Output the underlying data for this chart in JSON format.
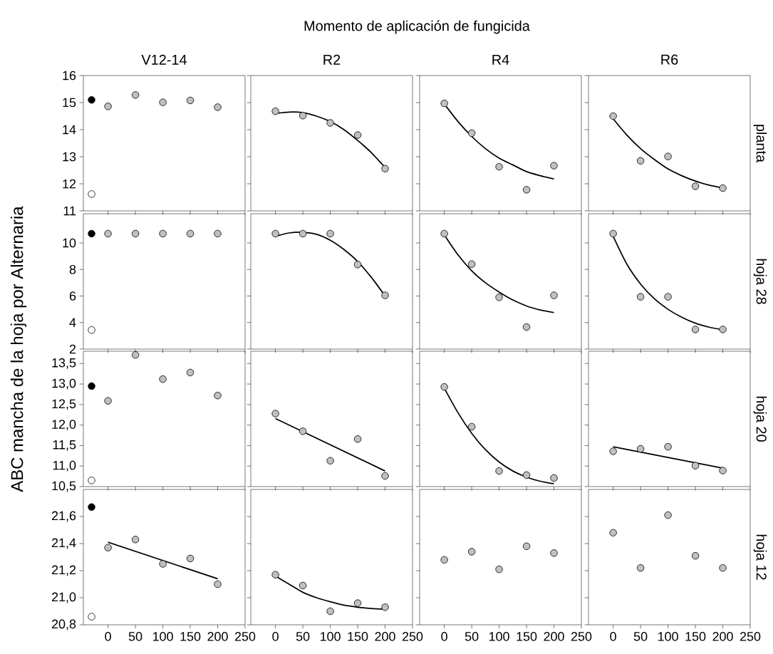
{
  "chart_data": [
    {
      "type": "scatter",
      "title": "V12-14",
      "ylabel": "ABC mancha de la hoja por Alternaria",
      "annotations": [
        "Momento de aplicación de fungicida"
      ],
      "xlim": [
        -45,
        250
      ],
      "ylim": [
        11,
        16
      ],
      "xticks": [
        0,
        50,
        100,
        150,
        200,
        250
      ],
      "yticks": [
        11,
        12,
        13,
        14,
        15,
        16
      ],
      "tick_labels": "y",
      "series": [
        {
          "color": "#c0c0c0",
          "x": [
            0,
            50,
            100,
            150,
            200
          ],
          "values": [
            14.86,
            15.28,
            15.01,
            15.08,
            14.83
          ]
        },
        {
          "color": "#000000",
          "x": [
            -30
          ],
          "values": [
            15.1
          ]
        },
        {
          "color": "#ffffff",
          "x": [
            -30
          ],
          "values": [
            11.62
          ]
        }
      ]
    },
    {
      "type": "scatter",
      "title": "R2",
      "xlim": [
        -45,
        250
      ],
      "ylim": [
        11,
        16
      ],
      "xticks": [
        0,
        50,
        100,
        150,
        200,
        250
      ],
      "yticks": [
        11,
        12,
        13,
        14,
        15,
        16
      ],
      "tick_labels": false,
      "series": [
        {
          "color": "#c0c0c0",
          "x": [
            0,
            50,
            100,
            150,
            200
          ],
          "values": [
            14.68,
            14.52,
            14.25,
            13.8,
            12.56
          ]
        },
        {
          "type": "line",
          "color": "#000000",
          "x": [
            0,
            25,
            50,
            75,
            100,
            125,
            150,
            175,
            200
          ],
          "values": [
            14.6,
            14.65,
            14.63,
            14.5,
            14.3,
            14.0,
            13.6,
            13.15,
            12.6
          ]
        }
      ]
    },
    {
      "type": "scatter",
      "title": "R4",
      "xlim": [
        -45,
        250
      ],
      "ylim": [
        11,
        16
      ],
      "xticks": [
        0,
        50,
        100,
        150,
        200,
        250
      ],
      "yticks": [
        11,
        12,
        13,
        14,
        15,
        16
      ],
      "tick_labels": false,
      "series": [
        {
          "color": "#c0c0c0",
          "x": [
            0,
            50,
            100,
            150,
            200
          ],
          "values": [
            14.97,
            13.87,
            12.63,
            11.78,
            12.67
          ]
        },
        {
          "type": "line",
          "color": "#000000",
          "x": [
            0,
            25,
            50,
            75,
            100,
            125,
            150,
            175,
            200
          ],
          "values": [
            14.95,
            14.3,
            13.75,
            13.3,
            12.95,
            12.7,
            12.45,
            12.3,
            12.18
          ]
        }
      ]
    },
    {
      "type": "scatter",
      "title": "R6",
      "y2label": "planta",
      "xlim": [
        -45,
        250
      ],
      "ylim": [
        11,
        16
      ],
      "xticks": [
        0,
        50,
        100,
        150,
        200,
        250
      ],
      "yticks": [
        11,
        12,
        13,
        14,
        15,
        16
      ],
      "tick_labels": false,
      "series": [
        {
          "color": "#c0c0c0",
          "x": [
            0,
            50,
            100,
            150,
            200
          ],
          "values": [
            14.5,
            12.85,
            13.01,
            11.91,
            11.84
          ]
        },
        {
          "type": "line",
          "color": "#000000",
          "x": [
            0,
            25,
            50,
            75,
            100,
            125,
            150,
            175,
            200
          ],
          "values": [
            14.4,
            13.8,
            13.3,
            12.9,
            12.55,
            12.3,
            12.1,
            11.95,
            11.85
          ]
        }
      ]
    },
    {
      "type": "scatter",
      "xlim": [
        -45,
        250
      ],
      "ylim": [
        2,
        12.2
      ],
      "xticks": [
        0,
        50,
        100,
        150,
        200,
        250
      ],
      "yticks": [
        2,
        4,
        6,
        8,
        10
      ],
      "tick_labels": "y",
      "series": [
        {
          "color": "#c0c0c0",
          "x": [
            0,
            50,
            100,
            150,
            200
          ],
          "values": [
            10.7,
            10.7,
            10.7,
            10.7,
            10.7
          ]
        },
        {
          "color": "#000000",
          "x": [
            -30
          ],
          "values": [
            10.7
          ]
        },
        {
          "color": "#ffffff",
          "x": [
            -30
          ],
          "values": [
            3.44
          ]
        }
      ]
    },
    {
      "type": "scatter",
      "xlim": [
        -45,
        250
      ],
      "ylim": [
        2,
        12.2
      ],
      "xticks": [
        0,
        50,
        100,
        150,
        200,
        250
      ],
      "yticks": [
        2,
        4,
        6,
        8,
        10
      ],
      "tick_labels": false,
      "series": [
        {
          "color": "#c0c0c0",
          "x": [
            0,
            50,
            100,
            150,
            200
          ],
          "values": [
            10.7,
            10.7,
            10.7,
            8.37,
            6.05
          ]
        },
        {
          "type": "line",
          "color": "#000000",
          "x": [
            0,
            25,
            50,
            75,
            100,
            125,
            150,
            175,
            200
          ],
          "values": [
            10.5,
            10.75,
            10.8,
            10.65,
            10.2,
            9.5,
            8.6,
            7.4,
            6.0
          ]
        }
      ]
    },
    {
      "type": "scatter",
      "xlim": [
        -45,
        250
      ],
      "ylim": [
        2,
        12.2
      ],
      "xticks": [
        0,
        50,
        100,
        150,
        200,
        250
      ],
      "yticks": [
        2,
        4,
        6,
        8,
        10
      ],
      "tick_labels": false,
      "series": [
        {
          "color": "#c0c0c0",
          "x": [
            0,
            50,
            100,
            150,
            200
          ],
          "values": [
            10.7,
            8.4,
            5.9,
            3.66,
            6.05
          ]
        },
        {
          "type": "line",
          "color": "#000000",
          "x": [
            0,
            25,
            50,
            75,
            100,
            125,
            150,
            175,
            200
          ],
          "values": [
            10.6,
            9.1,
            7.9,
            7.0,
            6.3,
            5.7,
            5.25,
            4.95,
            4.75
          ]
        }
      ]
    },
    {
      "type": "scatter",
      "y2label": "hoja 28",
      "xlim": [
        -45,
        250
      ],
      "ylim": [
        2,
        12.2
      ],
      "xticks": [
        0,
        50,
        100,
        150,
        200,
        250
      ],
      "yticks": [
        2,
        4,
        6,
        8,
        10
      ],
      "tick_labels": false,
      "series": [
        {
          "color": "#c0c0c0",
          "x": [
            0,
            50,
            100,
            150,
            200
          ],
          "values": [
            10.7,
            5.94,
            5.94,
            3.48,
            3.48
          ]
        },
        {
          "type": "line",
          "color": "#000000",
          "x": [
            0,
            25,
            50,
            75,
            100,
            125,
            150,
            175,
            200
          ],
          "values": [
            10.5,
            8.4,
            6.9,
            5.8,
            5.0,
            4.4,
            3.95,
            3.65,
            3.45
          ]
        }
      ]
    },
    {
      "type": "scatter",
      "xlim": [
        -45,
        250
      ],
      "ylim": [
        10.5,
        13.8
      ],
      "xticks": [
        0,
        50,
        100,
        150,
        200,
        250
      ],
      "yticks": [
        {
          "value": 10.5,
          "label": "10,5"
        },
        {
          "value": 11,
          "label": "11,0"
        },
        {
          "value": 11.5,
          "label": "11,5"
        },
        {
          "value": 12,
          "label": "12,0"
        },
        {
          "value": 12.5,
          "label": "12,5"
        },
        {
          "value": 13,
          "label": "13,0"
        },
        {
          "value": 13.5,
          "label": "13,5"
        }
      ],
      "tick_labels": "y",
      "series": [
        {
          "color": "#c0c0c0",
          "x": [
            0,
            50,
            100,
            150,
            200
          ],
          "values": [
            12.59,
            13.71,
            13.12,
            13.28,
            12.72
          ]
        },
        {
          "color": "#000000",
          "x": [
            -30
          ],
          "values": [
            12.95
          ]
        },
        {
          "color": "#ffffff",
          "x": [
            -30
          ],
          "values": [
            10.65
          ]
        }
      ]
    },
    {
      "type": "scatter",
      "xlim": [
        -45,
        250
      ],
      "ylim": [
        10.5,
        13.8
      ],
      "xticks": [
        0,
        50,
        100,
        150,
        200,
        250
      ],
      "yticks": [
        10.5,
        11,
        11.5,
        12,
        12.5,
        13,
        13.5
      ],
      "tick_labels": false,
      "series": [
        {
          "color": "#c0c0c0",
          "x": [
            0,
            50,
            100,
            150,
            200
          ],
          "values": [
            12.28,
            11.85,
            11.13,
            11.66,
            10.76
          ]
        },
        {
          "type": "line",
          "color": "#000000",
          "x": [
            0,
            200
          ],
          "values": [
            12.16,
            10.88
          ]
        }
      ]
    },
    {
      "type": "scatter",
      "xlim": [
        -45,
        250
      ],
      "ylim": [
        10.5,
        13.8
      ],
      "xticks": [
        0,
        50,
        100,
        150,
        200,
        250
      ],
      "yticks": [
        10.5,
        11,
        11.5,
        12,
        12.5,
        13,
        13.5
      ],
      "tick_labels": false,
      "series": [
        {
          "color": "#c0c0c0",
          "x": [
            0,
            50,
            100,
            150,
            200
          ],
          "values": [
            12.93,
            11.96,
            10.88,
            10.78,
            10.71
          ]
        },
        {
          "type": "line",
          "color": "#000000",
          "x": [
            0,
            25,
            50,
            75,
            100,
            125,
            150,
            175,
            200
          ],
          "values": [
            12.9,
            12.3,
            11.8,
            11.4,
            11.1,
            10.88,
            10.73,
            10.63,
            10.57
          ]
        }
      ]
    },
    {
      "type": "scatter",
      "y2label": "hoja 20",
      "xlim": [
        -45,
        250
      ],
      "ylim": [
        10.5,
        13.8
      ],
      "xticks": [
        0,
        50,
        100,
        150,
        200,
        250
      ],
      "yticks": [
        10.5,
        11,
        11.5,
        12,
        12.5,
        13,
        13.5
      ],
      "tick_labels": false,
      "series": [
        {
          "color": "#c0c0c0",
          "x": [
            0,
            50,
            100,
            150,
            200
          ],
          "values": [
            11.36,
            11.42,
            11.47,
            11.01,
            10.89
          ]
        },
        {
          "type": "line",
          "color": "#000000",
          "x": [
            0,
            200
          ],
          "values": [
            11.47,
            10.95
          ]
        }
      ]
    },
    {
      "type": "scatter",
      "xlim": [
        -45,
        250
      ],
      "ylim": [
        20.8,
        21.8
      ],
      "xticks": [
        0,
        50,
        100,
        150,
        200,
        250
      ],
      "yticks": [
        {
          "value": 20.8,
          "label": "20,8"
        },
        {
          "value": 21,
          "label": "21,0"
        },
        {
          "value": 21.2,
          "label": "21,2"
        },
        {
          "value": 21.4,
          "label": "21,4"
        },
        {
          "value": 21.6,
          "label": "21,6"
        }
      ],
      "series": [
        {
          "color": "#c0c0c0",
          "x": [
            0,
            50,
            100,
            150,
            200
          ],
          "values": [
            21.37,
            21.43,
            21.25,
            21.29,
            21.1
          ]
        },
        {
          "color": "#000000",
          "x": [
            -30
          ],
          "values": [
            21.67
          ]
        },
        {
          "color": "#ffffff",
          "x": [
            -30
          ],
          "values": [
            20.86
          ]
        },
        {
          "type": "line",
          "color": "#000000",
          "x": [
            0,
            200
          ],
          "values": [
            21.41,
            21.14
          ]
        }
      ]
    },
    {
      "type": "scatter",
      "xlim": [
        -45,
        250
      ],
      "ylim": [
        20.8,
        21.8
      ],
      "xticks": [
        0,
        50,
        100,
        150,
        200,
        250
      ],
      "yticks": [
        20.8,
        21,
        21.2,
        21.4,
        21.6
      ],
      "tick_labels": "x",
      "series": [
        {
          "color": "#c0c0c0",
          "x": [
            0,
            50,
            100,
            150,
            200
          ],
          "values": [
            21.17,
            21.09,
            20.9,
            20.96,
            20.93
          ]
        },
        {
          "type": "line",
          "color": "#000000",
          "x": [
            0,
            25,
            50,
            75,
            100,
            125,
            150,
            175,
            200
          ],
          "values": [
            21.16,
            21.1,
            21.04,
            21.0,
            20.97,
            20.945,
            20.93,
            20.92,
            20.915
          ]
        }
      ]
    },
    {
      "type": "scatter",
      "xlim": [
        -45,
        250
      ],
      "ylim": [
        20.8,
        21.8
      ],
      "xticks": [
        0,
        50,
        100,
        150,
        200,
        250
      ],
      "yticks": [
        20.8,
        21,
        21.2,
        21.4,
        21.6
      ],
      "tick_labels": "x",
      "series": [
        {
          "color": "#c0c0c0",
          "x": [
            0,
            50,
            100,
            150,
            200
          ],
          "values": [
            21.28,
            21.34,
            21.21,
            21.38,
            21.33
          ]
        }
      ]
    },
    {
      "type": "scatter",
      "y2label": "hoja 12",
      "xlim": [
        -45,
        250
      ],
      "ylim": [
        20.8,
        21.8
      ],
      "xticks": [
        0,
        50,
        100,
        150,
        200,
        250
      ],
      "yticks": [
        20.8,
        21,
        21.2,
        21.4,
        21.6
      ],
      "tick_labels": "x",
      "series": [
        {
          "color": "#c0c0c0",
          "x": [
            0,
            50,
            100,
            150,
            200
          ],
          "values": [
            21.48,
            21.22,
            21.61,
            21.31,
            21.22
          ]
        }
      ]
    }
  ]
}
